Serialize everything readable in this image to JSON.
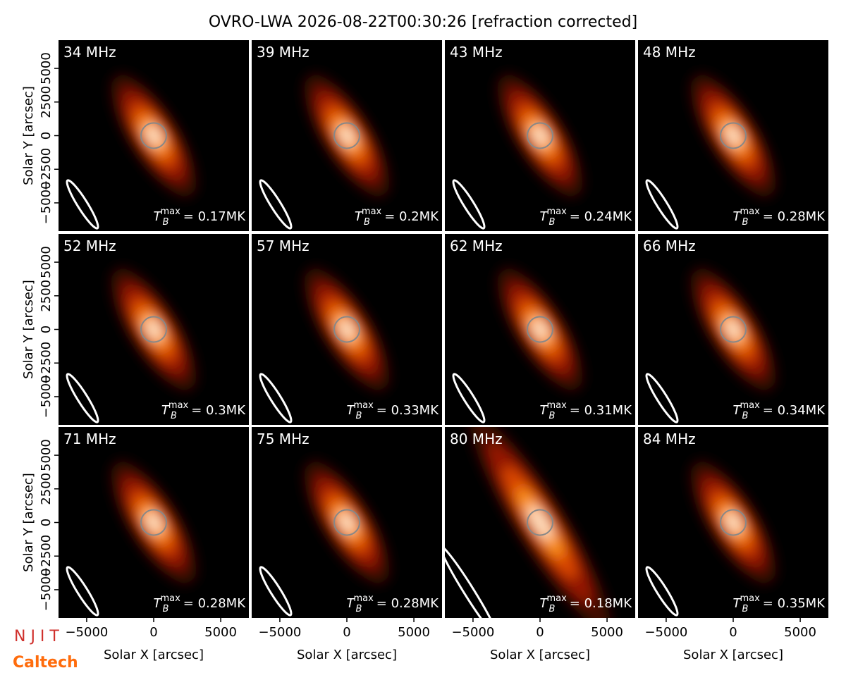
{
  "chart_data": {
    "type": "image_grid",
    "title": "OVRO-LWA 2026-08-22T00:30:26 [refraction corrected]",
    "xlabel": "Solar X [arcsec]",
    "ylabel": "Solar Y [arcsec]",
    "xlim": [
      -7100,
      7100
    ],
    "ylim": [
      -7100,
      7100
    ],
    "xticks": [
      {
        "value": -5000,
        "label": "−5000"
      },
      0,
      5000
    ],
    "yticks": [
      {
        "value": -5000,
        "label": "−5000"
      },
      {
        "value": -2500,
        "label": "−2500"
      },
      0,
      2500,
      5000
    ],
    "categories": [
      "34 MHz",
      "39 MHz",
      "43 MHz",
      "48 MHz",
      "52 MHz",
      "57 MHz",
      "62 MHz",
      "66 MHz",
      "71 MHz",
      "75 MHz",
      "80 MHz",
      "84 MHz"
    ],
    "tb_symbol": "T",
    "tb_subscript": "B",
    "tb_superscript": "max",
    "values": [
      0.17,
      0.2,
      0.24,
      0.28,
      0.3,
      0.33,
      0.31,
      0.34,
      0.28,
      0.28,
      0.18,
      0.35
    ],
    "value_labels": [
      "= 0.17MK",
      "= 0.2MK",
      "= 0.24MK",
      "= 0.28MK",
      "= 0.3MK",
      "= 0.33MK",
      "= 0.31MK",
      "= 0.34MK",
      "= 0.28MK",
      "= 0.28MK",
      "= 0.18MK",
      "= 0.35MK"
    ],
    "logos": [
      "N J I T",
      "Caltech"
    ]
  }
}
